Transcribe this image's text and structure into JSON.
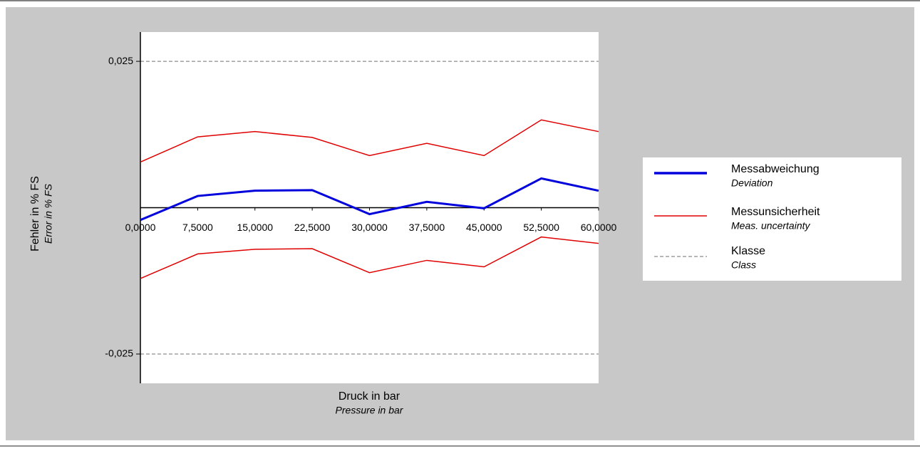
{
  "chart_data": {
    "type": "line",
    "y_label": "Fehler in % FS",
    "y_sublabel": "Error in % FS",
    "x_label": "Druck in bar",
    "x_sublabel": "Pressure in bar",
    "x": [
      0,
      7.5,
      15,
      22.5,
      30,
      37.5,
      45,
      52.5,
      60
    ],
    "xlim": [
      0,
      60
    ],
    "xticks": [
      {
        "value": 0,
        "label": "0,0000"
      },
      {
        "value": 7.5,
        "label": "7,5000"
      },
      {
        "value": 15,
        "label": "15,0000"
      },
      {
        "value": 22.5,
        "label": "22,5000"
      },
      {
        "value": 30,
        "label": "30,0000"
      },
      {
        "value": 37.5,
        "label": "37,5000"
      },
      {
        "value": 45,
        "label": "45,0000"
      },
      {
        "value": 52.5,
        "label": "52,5000"
      },
      {
        "value": 60,
        "label": "60,0000"
      }
    ],
    "ylim": [
      -0.03,
      0.03
    ],
    "yticks": [
      {
        "value": 0.025,
        "label": "0,025"
      },
      {
        "value": -0.025,
        "label": "-0,025"
      }
    ],
    "series": [
      {
        "name": "Messabweichung",
        "subname": "Deviation",
        "color": "#0000dd",
        "values": [
          -0.0021,
          0.002,
          0.0029,
          0.003,
          -0.0011,
          0.001,
          -0.0001,
          0.005,
          0.0029
        ]
      },
      {
        "name": "Messunsicherheit",
        "subname": "Meas. uncertainty",
        "color": "#e00000",
        "values": [
          0.0078,
          0.0121,
          0.013,
          0.012,
          0.0089,
          0.011,
          0.0089,
          0.015,
          0.013
        ],
        "lower": [
          -0.0121,
          -0.0079,
          -0.0071,
          -0.007,
          -0.0111,
          -0.009,
          -0.0101,
          -0.005,
          -0.0061
        ]
      }
    ],
    "class_limits": {
      "name": "Klasse",
      "subname": "Class",
      "color": "#a0a0a0",
      "values": [
        0.025,
        -0.025
      ]
    }
  }
}
